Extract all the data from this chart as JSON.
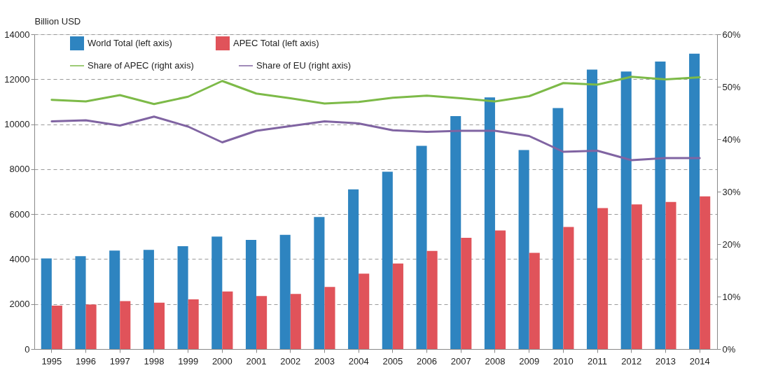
{
  "chart_data": {
    "type": "bar",
    "ylabel": "Billion USD",
    "categories": [
      "1995",
      "1996",
      "1997",
      "1998",
      "1999",
      "2000",
      "2001",
      "2002",
      "2003",
      "2004",
      "2005",
      "2006",
      "2007",
      "2008",
      "2009",
      "2010",
      "2011",
      "2012",
      "2013",
      "2014"
    ],
    "series": [
      {
        "name": "World Total (left axis)",
        "color": "#2e84c0",
        "values": [
          4030,
          4130,
          4380,
          4410,
          4570,
          5000,
          4850,
          5080,
          5870,
          7100,
          7890,
          9040,
          10360,
          11190,
          8850,
          10720,
          12430,
          12340,
          12790,
          13140
        ]
      },
      {
        "name": "APEC Total (left axis)",
        "color": "#e0535a",
        "values": [
          1930,
          1980,
          2130,
          2060,
          2210,
          2560,
          2360,
          2450,
          2760,
          3350,
          3800,
          4360,
          4950,
          5270,
          4280,
          5430,
          6270,
          6430,
          6540,
          6790
        ]
      },
      {
        "name": "Share of APEC (right axis)",
        "type": "line",
        "axis": "y2",
        "color": "#7dba48",
        "values": [
          47.5,
          47.2,
          48.4,
          46.7,
          48.1,
          51.1,
          48.7,
          47.8,
          46.8,
          47.1,
          47.9,
          48.3,
          47.8,
          47.2,
          48.2,
          50.7,
          50.4,
          51.9,
          51.4,
          51.8
        ]
      },
      {
        "name": "Share of EU (right axis)",
        "type": "line",
        "axis": "y2",
        "color": "#8064a2",
        "values": [
          43.4,
          43.6,
          42.6,
          44.3,
          42.4,
          39.4,
          41.6,
          42.5,
          43.4,
          43.0,
          41.7,
          41.4,
          41.6,
          41.6,
          40.6,
          37.6,
          37.8,
          36.0,
          36.4,
          36.4
        ]
      }
    ],
    "ylim": [
      0,
      14000
    ],
    "yticks": [
      0,
      2000,
      4000,
      6000,
      8000,
      10000,
      12000,
      14000
    ],
    "y2lim": [
      0,
      60
    ],
    "y2ticks": [
      {
        "value": 0,
        "label": "0%"
      },
      {
        "value": 10,
        "label": "10%"
      },
      {
        "value": 20,
        "label": "20%"
      },
      {
        "value": 30,
        "label": "30%"
      },
      {
        "value": 40,
        "label": "40%"
      },
      {
        "value": 50,
        "label": "50%"
      },
      {
        "value": 60,
        "label": "60%"
      }
    ],
    "grid": "y",
    "legend": "top left",
    "marker": "none",
    "line_style": "solid"
  }
}
